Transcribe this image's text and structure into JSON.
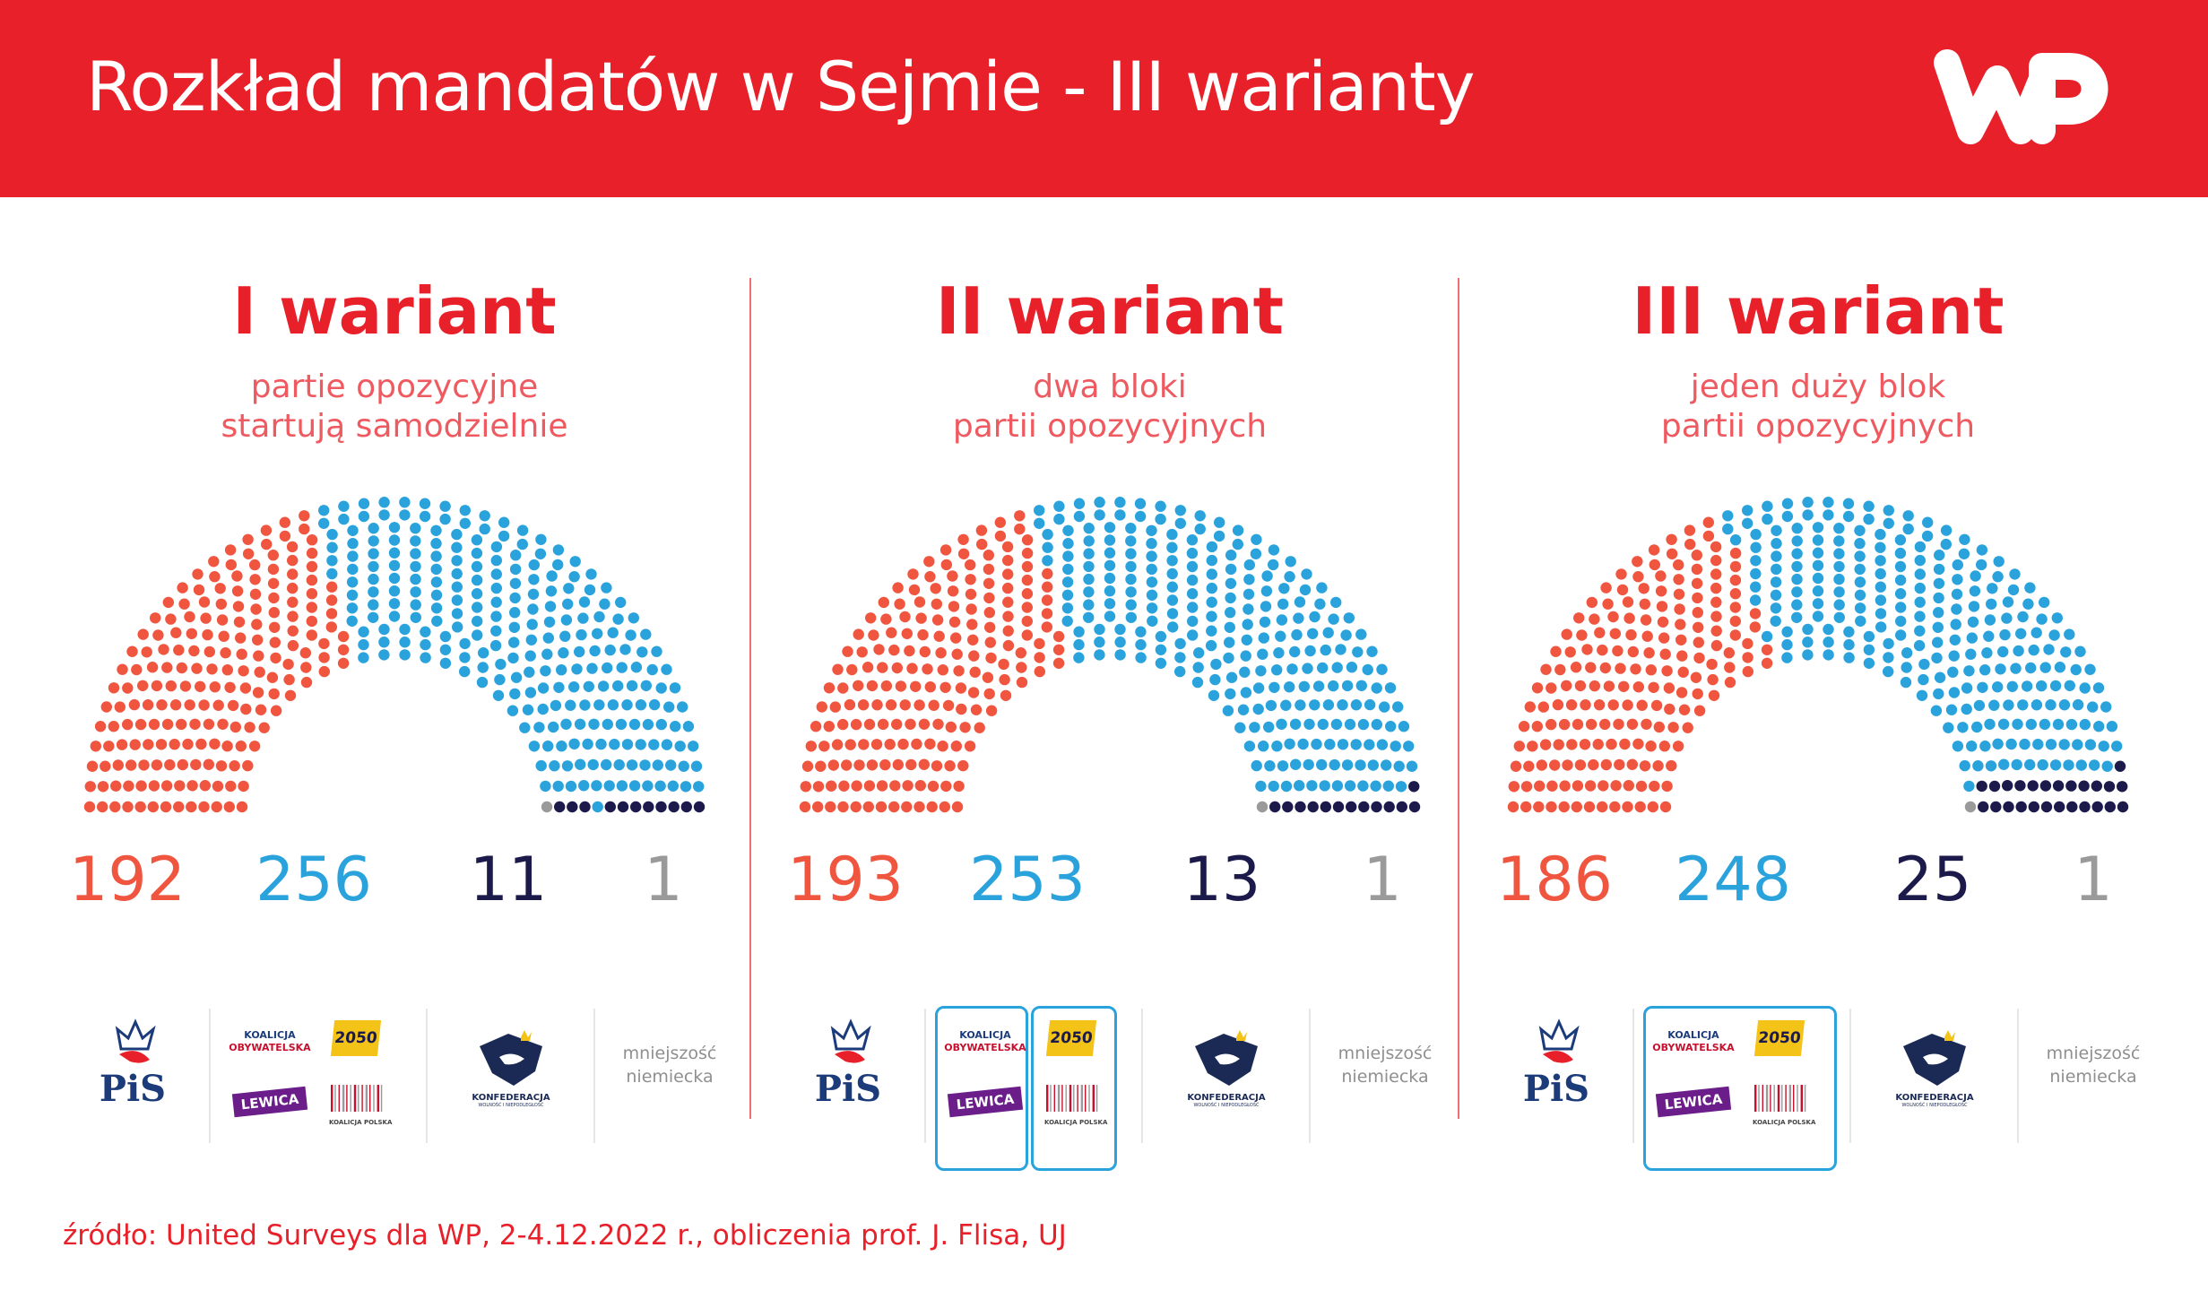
{
  "header": {
    "title": "Rozkład mandatów w Sejmie - III warianty",
    "logo_text": "WP"
  },
  "colors": {
    "header_bg": "#e8202a",
    "pis": "#f0553f",
    "opposition": "#2aa3dd",
    "konfederacja": "#1b1a4a",
    "minority": "#9a9a9a"
  },
  "chart_data": [
    {
      "type": "parliament",
      "title": "I wariant",
      "subtitle": [
        "partie opozycyjne",
        "startują samodzielnie"
      ],
      "series": [
        {
          "name": "PiS",
          "value": 192,
          "color": "#f0553f"
        },
        {
          "name": "Koalicja Obywatelska, 2050, Lewica, Koalicja Polska",
          "value": 256,
          "color": "#2aa3dd"
        },
        {
          "name": "Konfederacja",
          "value": 11,
          "color": "#1b1a4a"
        },
        {
          "name": "mniejszość niemiecka",
          "value": 1,
          "color": "#9a9a9a"
        }
      ],
      "total": 460
    },
    {
      "type": "parliament",
      "title": "II wariant",
      "subtitle": [
        "dwa bloki",
        "partii opozycyjnych"
      ],
      "series": [
        {
          "name": "PiS",
          "value": 193,
          "color": "#f0553f"
        },
        {
          "name": "Koalicja Obywatelska, 2050, Lewica, Koalicja Polska",
          "value": 253,
          "color": "#2aa3dd"
        },
        {
          "name": "Konfederacja",
          "value": 13,
          "color": "#1b1a4a"
        },
        {
          "name": "mniejszość niemiecka",
          "value": 1,
          "color": "#9a9a9a"
        }
      ],
      "total": 460
    },
    {
      "type": "parliament",
      "title": "III wariant",
      "subtitle": [
        "jeden duży blok",
        "partii opozycyjnych"
      ],
      "series": [
        {
          "name": "PiS",
          "value": 186,
          "color": "#f0553f"
        },
        {
          "name": "Koalicja Obywatelska, 2050, Lewica, Koalicja Polska",
          "value": 248,
          "color": "#2aa3dd"
        },
        {
          "name": "Konfederacja",
          "value": 25,
          "color": "#1b1a4a"
        },
        {
          "name": "mniejszość niemiecka",
          "value": 1,
          "color": "#9a9a9a"
        }
      ],
      "total": 460
    }
  ],
  "party_logos": {
    "pis": "PiS",
    "ko_line1": "KOALICJA",
    "ko_line2": "OBYWATELSKA",
    "p2050": "2050",
    "lewica": "LEWICA",
    "kp": "KOALICJA POLSKA",
    "konfederacja": "KONFEDERACJA",
    "konfederacja_sub": "WOLNOŚĆ I NIEPODLEGŁOŚĆ",
    "minority_line1": "mniejszość",
    "minority_line2": "niemiecka"
  },
  "footer": {
    "source": "źródło: United Surveys dla WP, 2-4.12.2022 r., obliczenia prof. J. Flisa, UJ"
  }
}
